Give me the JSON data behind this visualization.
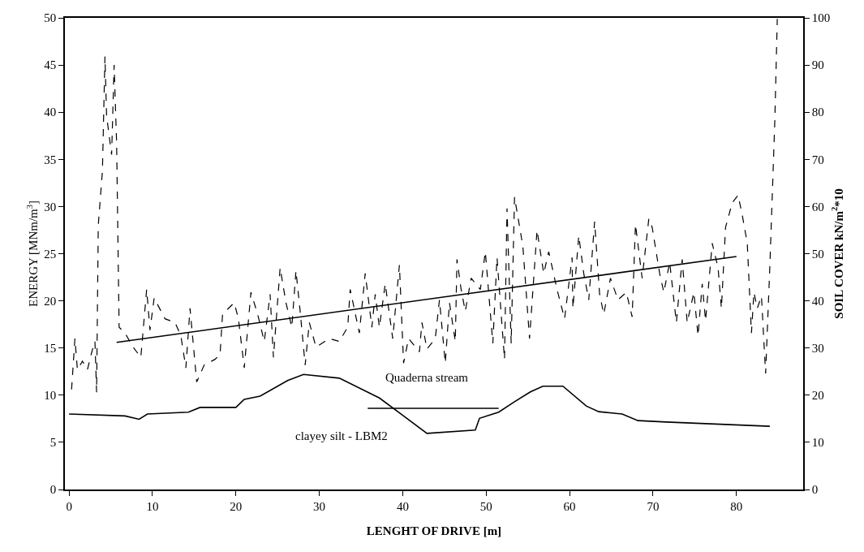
{
  "chart_data": {
    "type": "line",
    "xlabel": "LENGHT OF DRIVE [m]",
    "ylabel": "ENERGY [MNm/m$^{3}$]",
    "y2label": "SOIL COVER kN/m$^{2}$*10",
    "xlim": [
      -0.5,
      88
    ],
    "xticks": [
      0,
      10,
      20,
      30,
      40,
      50,
      60,
      70,
      80
    ],
    "ylim": [
      0,
      50
    ],
    "yticks": [
      0,
      5,
      10,
      15,
      20,
      25,
      30,
      35,
      40,
      45,
      50
    ],
    "y2lim": [
      0,
      100
    ],
    "y2ticks": [
      0,
      10,
      20,
      30,
      40,
      50,
      60,
      70,
      80,
      90,
      100
    ],
    "annotations": [
      "Quaderna stream",
      "clayey silt - LBM2"
    ],
    "series": [
      {
        "color": "#000000",
        "line_style": "dashed",
        "x": [
          0.3,
          0.7,
          1.0,
          1.6,
          2.2,
          2.7,
          3.1,
          3.3,
          3.5,
          4.0,
          4.3,
          4.5,
          5.1,
          5.4,
          5.7,
          6.0,
          6.7,
          7.6,
          8.6,
          9.3,
          9.7,
          10.2,
          11.5,
          12.7,
          13.4,
          14.0,
          14.5,
          15.3,
          16.2,
          17.5,
          18.1,
          18.4,
          19.8,
          20.3,
          21.0,
          21.8,
          22.6,
          23.4,
          24.1,
          24.5,
          25.3,
          26.0,
          26.7,
          27.2,
          27.7,
          28.3,
          28.8,
          29.6,
          31.2,
          32.4,
          33.4,
          33.7,
          34.8,
          35.5,
          36.3,
          36.7,
          37.2,
          37.9,
          38.8,
          39.6,
          40.1,
          40.7,
          42.0,
          42.3,
          42.9,
          43.9,
          44.4,
          45.1,
          45.6,
          46.3,
          46.5,
          47.0,
          47.5,
          48.2,
          49.3,
          49.9,
          50.8,
          51.3,
          52.2,
          52.5,
          53.0,
          53.4,
          54.4,
          55.2,
          56.1,
          56.9,
          57.5,
          58.5,
          59.4,
          60.3,
          60.4,
          61.1,
          61.7,
          62.3,
          63.0,
          63.6,
          64.1,
          64.9,
          65.8,
          66.8,
          67.5,
          67.9,
          68.7,
          69.5,
          69.9,
          70.8,
          71.3,
          72.0,
          72.8,
          73.5,
          74.1,
          74.9,
          75.4,
          75.9,
          76.3,
          77.1,
          77.8,
          78.2,
          78.7,
          79.5,
          80.2,
          80.7,
          81.3,
          81.8,
          82.1,
          82.5,
          83.0,
          83.5,
          84.0,
          84.3,
          84.6,
          84.9
        ],
        "values": [
          10.6,
          16.0,
          12.7,
          13.6,
          12.7,
          14.5,
          15.7,
          10.3,
          28.0,
          33.8,
          45.9,
          39.6,
          35.5,
          45.0,
          36.7,
          17.2,
          16.6,
          15.2,
          14.0,
          21.2,
          16.9,
          20.3,
          18.1,
          17.7,
          16.3,
          12.9,
          19.2,
          11.4,
          13.2,
          13.8,
          14.3,
          18.6,
          19.8,
          18.1,
          12.9,
          20.9,
          18.6,
          15.7,
          20.7,
          14.0,
          23.5,
          19.8,
          17.2,
          23.2,
          18.9,
          13.2,
          17.7,
          15.1,
          16.0,
          15.7,
          17.2,
          21.2,
          16.6,
          22.9,
          17.2,
          20.7,
          17.2,
          21.8,
          16.0,
          23.8,
          13.4,
          16.0,
          14.6,
          17.7,
          14.9,
          16.0,
          20.1,
          13.4,
          19.8,
          15.7,
          24.4,
          21.2,
          18.9,
          22.4,
          21.2,
          25.2,
          15.5,
          24.6,
          13.8,
          29.8,
          15.5,
          31.0,
          25.8,
          16.0,
          27.5,
          22.9,
          25.2,
          21.2,
          18.1,
          24.6,
          19.2,
          26.9,
          22.9,
          20.1,
          28.4,
          20.7,
          18.6,
          22.4,
          20.1,
          20.9,
          18.3,
          28.1,
          22.4,
          28.7,
          27.8,
          22.9,
          20.9,
          24.1,
          17.7,
          24.4,
          17.7,
          20.9,
          16.3,
          21.8,
          17.9,
          26.1,
          23.5,
          19.2,
          27.8,
          30.4,
          31.2,
          29.1,
          26.1,
          16.6,
          20.9,
          19.2,
          20.5,
          12.3,
          23.5,
          31.2,
          39.0,
          49.9
        ]
      },
      {
        "color": "#000000",
        "line_style": "solid",
        "x": [
          5.7,
          80.0
        ],
        "values": [
          15.6,
          24.7
        ]
      },
      {
        "color": "#000000",
        "line_style": "solid",
        "axis": "y2",
        "x": [
          0,
          6.7,
          8.4,
          9.4,
          14.3,
          15.7,
          20.0,
          21.0,
          22.9,
          26.2,
          28.1,
          32.4,
          37.2,
          40.1,
          42.9,
          48.7,
          49.2,
          51.5,
          53.4,
          55.3,
          56.8,
          59.2,
          62.0,
          63.5,
          66.3,
          68.2,
          71.6,
          84.0
        ],
        "values": [
          16.0,
          15.6,
          14.9,
          16.0,
          16.4,
          17.4,
          17.4,
          19.1,
          19.8,
          23.1,
          24.4,
          23.6,
          19.4,
          15.6,
          11.9,
          12.6,
          15.1,
          16.4,
          18.6,
          20.7,
          21.9,
          21.9,
          17.7,
          16.5,
          16.0,
          14.6,
          14.3,
          13.4
        ]
      },
      {
        "color": "#000000",
        "line_style": "solid",
        "axis": "y2",
        "x": [
          35.8,
          51.5
        ],
        "values": [
          17.2,
          17.2
        ]
      }
    ]
  }
}
